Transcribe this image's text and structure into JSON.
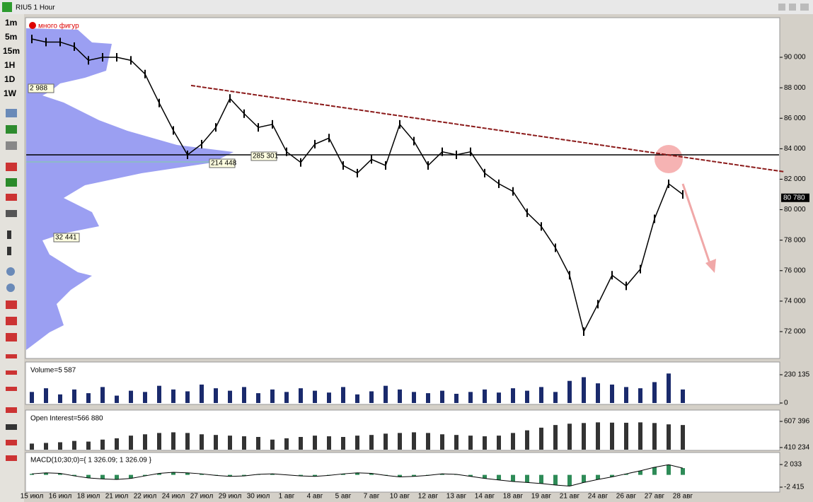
{
  "window": {
    "title": "RIU5 1 Hour"
  },
  "toolbar": {
    "timeframes": [
      "1m",
      "5m",
      "15m",
      "1H",
      "1D",
      "1W"
    ]
  },
  "chart_data": [
    {
      "type": "line",
      "annotation": "много фигур",
      "profile_labels": [
        "2 988",
        "214 448",
        "285 301",
        "32 441"
      ],
      "categories": [
        "15 июл",
        null,
        "16 июл",
        null,
        "18 июл",
        null,
        "21 июл",
        null,
        "22 июл",
        null,
        "24 июл",
        null,
        "27 июл",
        null,
        "29 июл",
        null,
        "30 июл",
        null,
        "1 авг",
        null,
        "4 авг",
        null,
        "5 авг",
        null,
        "7 авг",
        null,
        "10 авг",
        null,
        "12 авг",
        null,
        "13 авг",
        null,
        "14 авг",
        null,
        "18 авг",
        null,
        "19 авг",
        null,
        "21 авг",
        null,
        "24 авг",
        null,
        "26 авг",
        null,
        "27 авг",
        null,
        "28 авг"
      ],
      "values": [
        91200,
        91000,
        91000,
        90700,
        89800,
        90000,
        90000,
        89800,
        88900,
        87000,
        85200,
        83600,
        84300,
        85400,
        87300,
        86300,
        85400,
        85600,
        83800,
        83100,
        84300,
        84700,
        82900,
        82400,
        83300,
        82900,
        85600,
        84500,
        82900,
        83800,
        83600,
        83800,
        82400,
        81700,
        81200,
        79800,
        78900,
        77500,
        75700,
        72000,
        73800,
        75700,
        75000,
        76100,
        79400,
        81700,
        81000
      ],
      "color": "#000000",
      "last_price": 80780,
      "last_price_label": "80 780",
      "level": 83600,
      "trendline": [
        88150,
        82490
      ],
      "ylim": [
        70330,
        92460
      ],
      "yticks": [
        {
          "value": 72000,
          "label": "72 000"
        },
        {
          "value": 74000,
          "label": "74 000"
        },
        {
          "value": 76000,
          "label": "76 000"
        },
        {
          "value": 78000,
          "label": "78 000"
        },
        {
          "value": 80000,
          "label": "80 000"
        },
        {
          "value": 82000,
          "label": "82 000"
        },
        {
          "value": 84000,
          "label": "84 000"
        },
        {
          "value": 86000,
          "label": "86 000"
        },
        {
          "value": 88000,
          "label": "88 000"
        },
        {
          "value": 90000,
          "label": "90 000"
        }
      ]
    },
    {
      "type": "bar",
      "title": "Volume=5 587",
      "color": "#1a2a6c",
      "values": [
        90000,
        120000,
        70000,
        110000,
        80000,
        130000,
        60000,
        100000,
        90000,
        140000,
        110000,
        95000,
        150000,
        120000,
        100000,
        130000,
        80000,
        110000,
        90000,
        120000,
        100000,
        85000,
        130000,
        70000,
        95000,
        140000,
        110000,
        90000,
        80000,
        100000,
        75000,
        90000,
        110000,
        85000,
        120000,
        100000,
        130000,
        90000,
        180000,
        210000,
        160000,
        150000,
        130000,
        120000,
        170000,
        240000,
        110000
      ],
      "ylim": [
        0,
        322000
      ],
      "yticks": [
        0,
        {
          "value": 230135,
          "label": "230 135"
        }
      ]
    },
    {
      "type": "bar",
      "title": "Open Interest=566 880",
      "color": "#333333",
      "values": [
        440000,
        445000,
        450000,
        460000,
        455000,
        470000,
        480000,
        500000,
        510000,
        520000,
        525000,
        520000,
        510000,
        505000,
        500000,
        495000,
        490000,
        470000,
        480000,
        490000,
        500000,
        495000,
        490000,
        500000,
        505000,
        515000,
        520000,
        525000,
        520000,
        510000,
        505000,
        500000,
        495000,
        500000,
        520000,
        540000,
        560000,
        580000,
        590000,
        595000,
        600000,
        598000,
        597000,
        600000,
        595000,
        585000,
        580000
      ],
      "ylim": [
        394000,
        682000
      ],
      "yticks": [
        {
          "value": 410234,
          "label": "410 234"
        },
        {
          "value": 607396,
          "label": "607 396"
        }
      ]
    },
    {
      "type": "bar",
      "title": "MACD(10;30;0)={ 1 326.09; 1 326.09 }",
      "color": "#2e8b57",
      "values": [
        200,
        400,
        300,
        -200,
        -600,
        -800,
        -900,
        -700,
        -200,
        300,
        500,
        400,
        200,
        -100,
        -300,
        -200,
        100,
        200,
        0,
        -200,
        -300,
        -100,
        200,
        400,
        300,
        -100,
        -400,
        -300,
        -100,
        200,
        100,
        -300,
        -700,
        -1000,
        -1300,
        -1500,
        -1700,
        -2000,
        -2200,
        -1500,
        -900,
        -400,
        200,
        800,
        1500,
        2000,
        1326.09
      ],
      "ylim": [
        -3249,
        4257
      ],
      "yticks": [
        {
          "value": -2415,
          "label": "-2 415"
        },
        {
          "value": 2033,
          "label": "2 033"
        }
      ]
    }
  ]
}
